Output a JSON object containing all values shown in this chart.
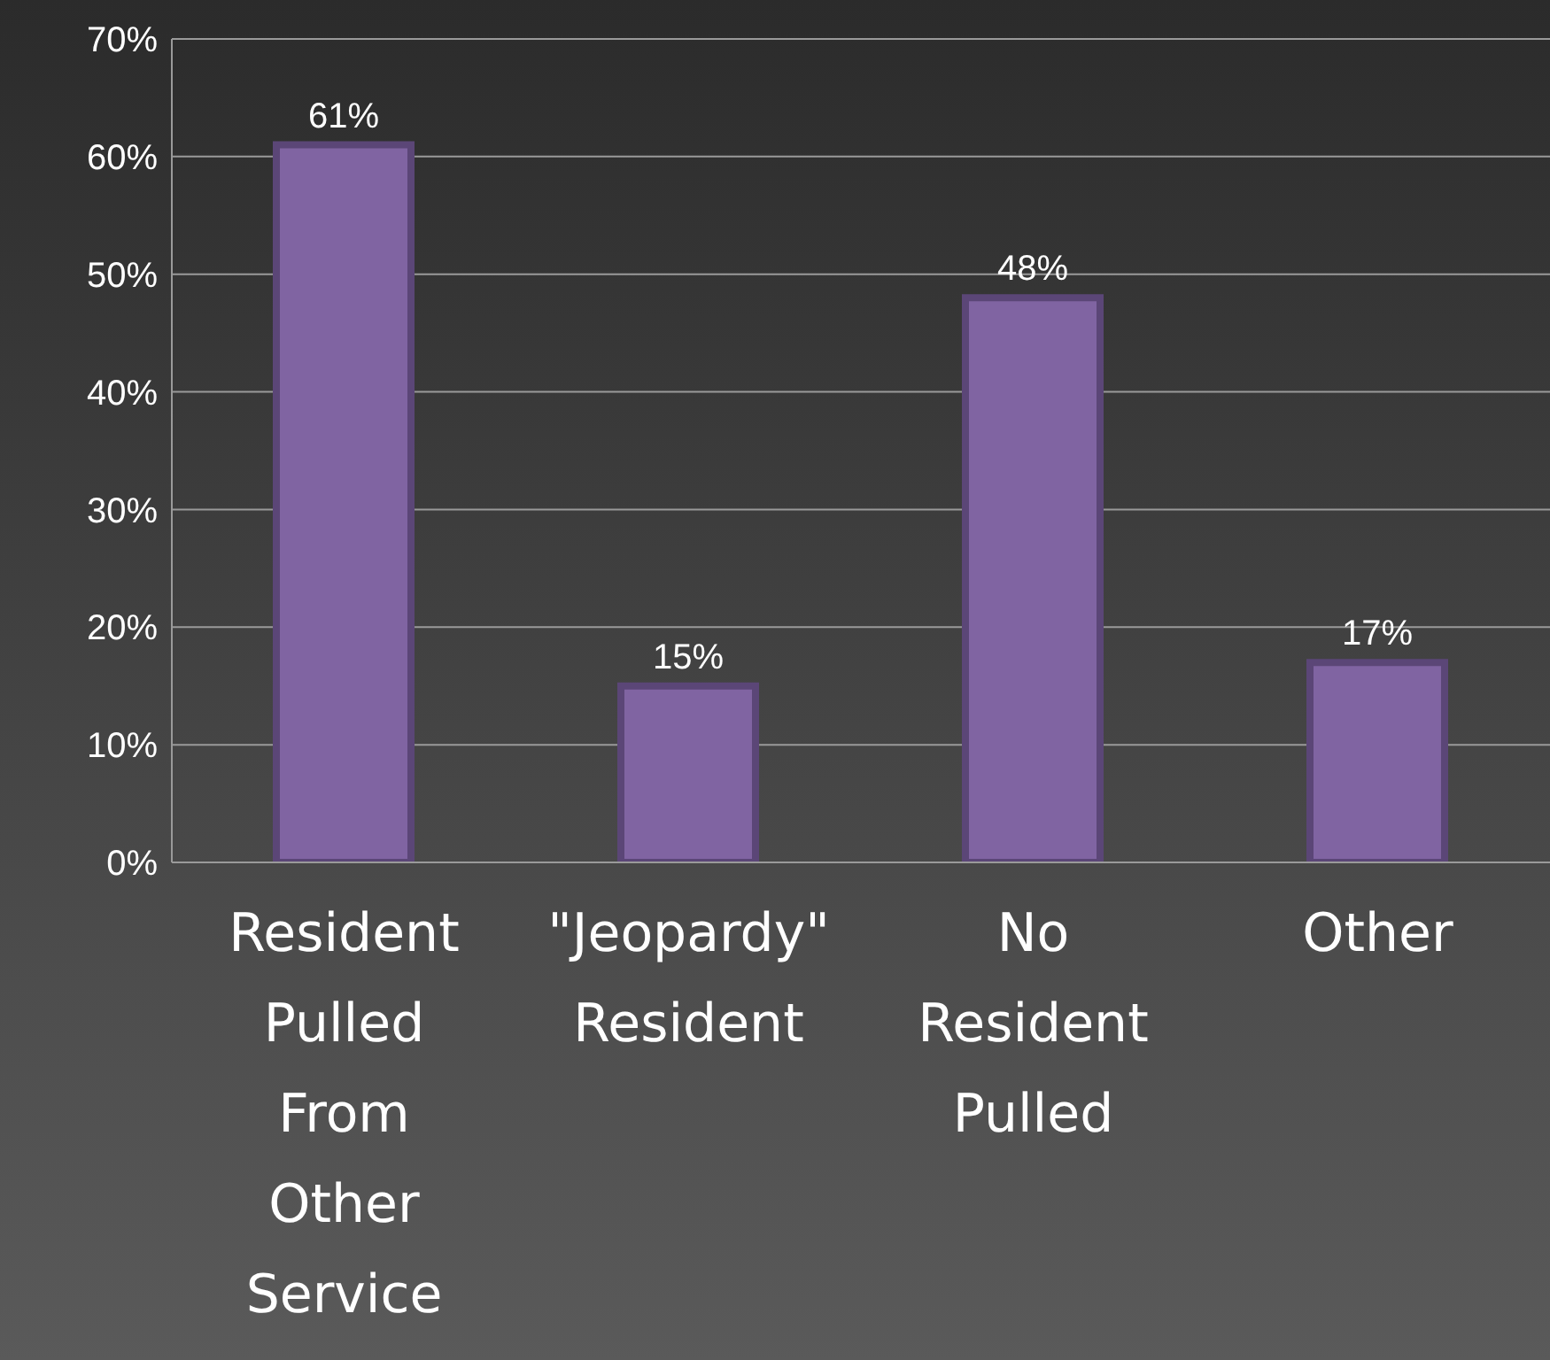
{
  "chart_data": {
    "type": "bar",
    "categories": [
      "Resident Pulled From Other Service",
      "\"Jeopardy\" Resident",
      "No Resident Pulled",
      "Other"
    ],
    "values": [
      61,
      15,
      48,
      17
    ],
    "color": "#8064a2",
    "value_labels": [
      "61%",
      "15%",
      "48%",
      "17%"
    ],
    "ylim": [
      0,
      70
    ],
    "yticks": [
      {
        "value": 0,
        "label": "0%"
      },
      {
        "value": 10,
        "label": "10%"
      },
      {
        "value": 20,
        "label": "20%"
      },
      {
        "value": 30,
        "label": "30%"
      },
      {
        "value": 40,
        "label": "40%"
      },
      {
        "value": 50,
        "label": "50%"
      },
      {
        "value": 60,
        "label": "60%"
      },
      {
        "value": 70,
        "label": "70%"
      }
    ],
    "grid": "y"
  }
}
